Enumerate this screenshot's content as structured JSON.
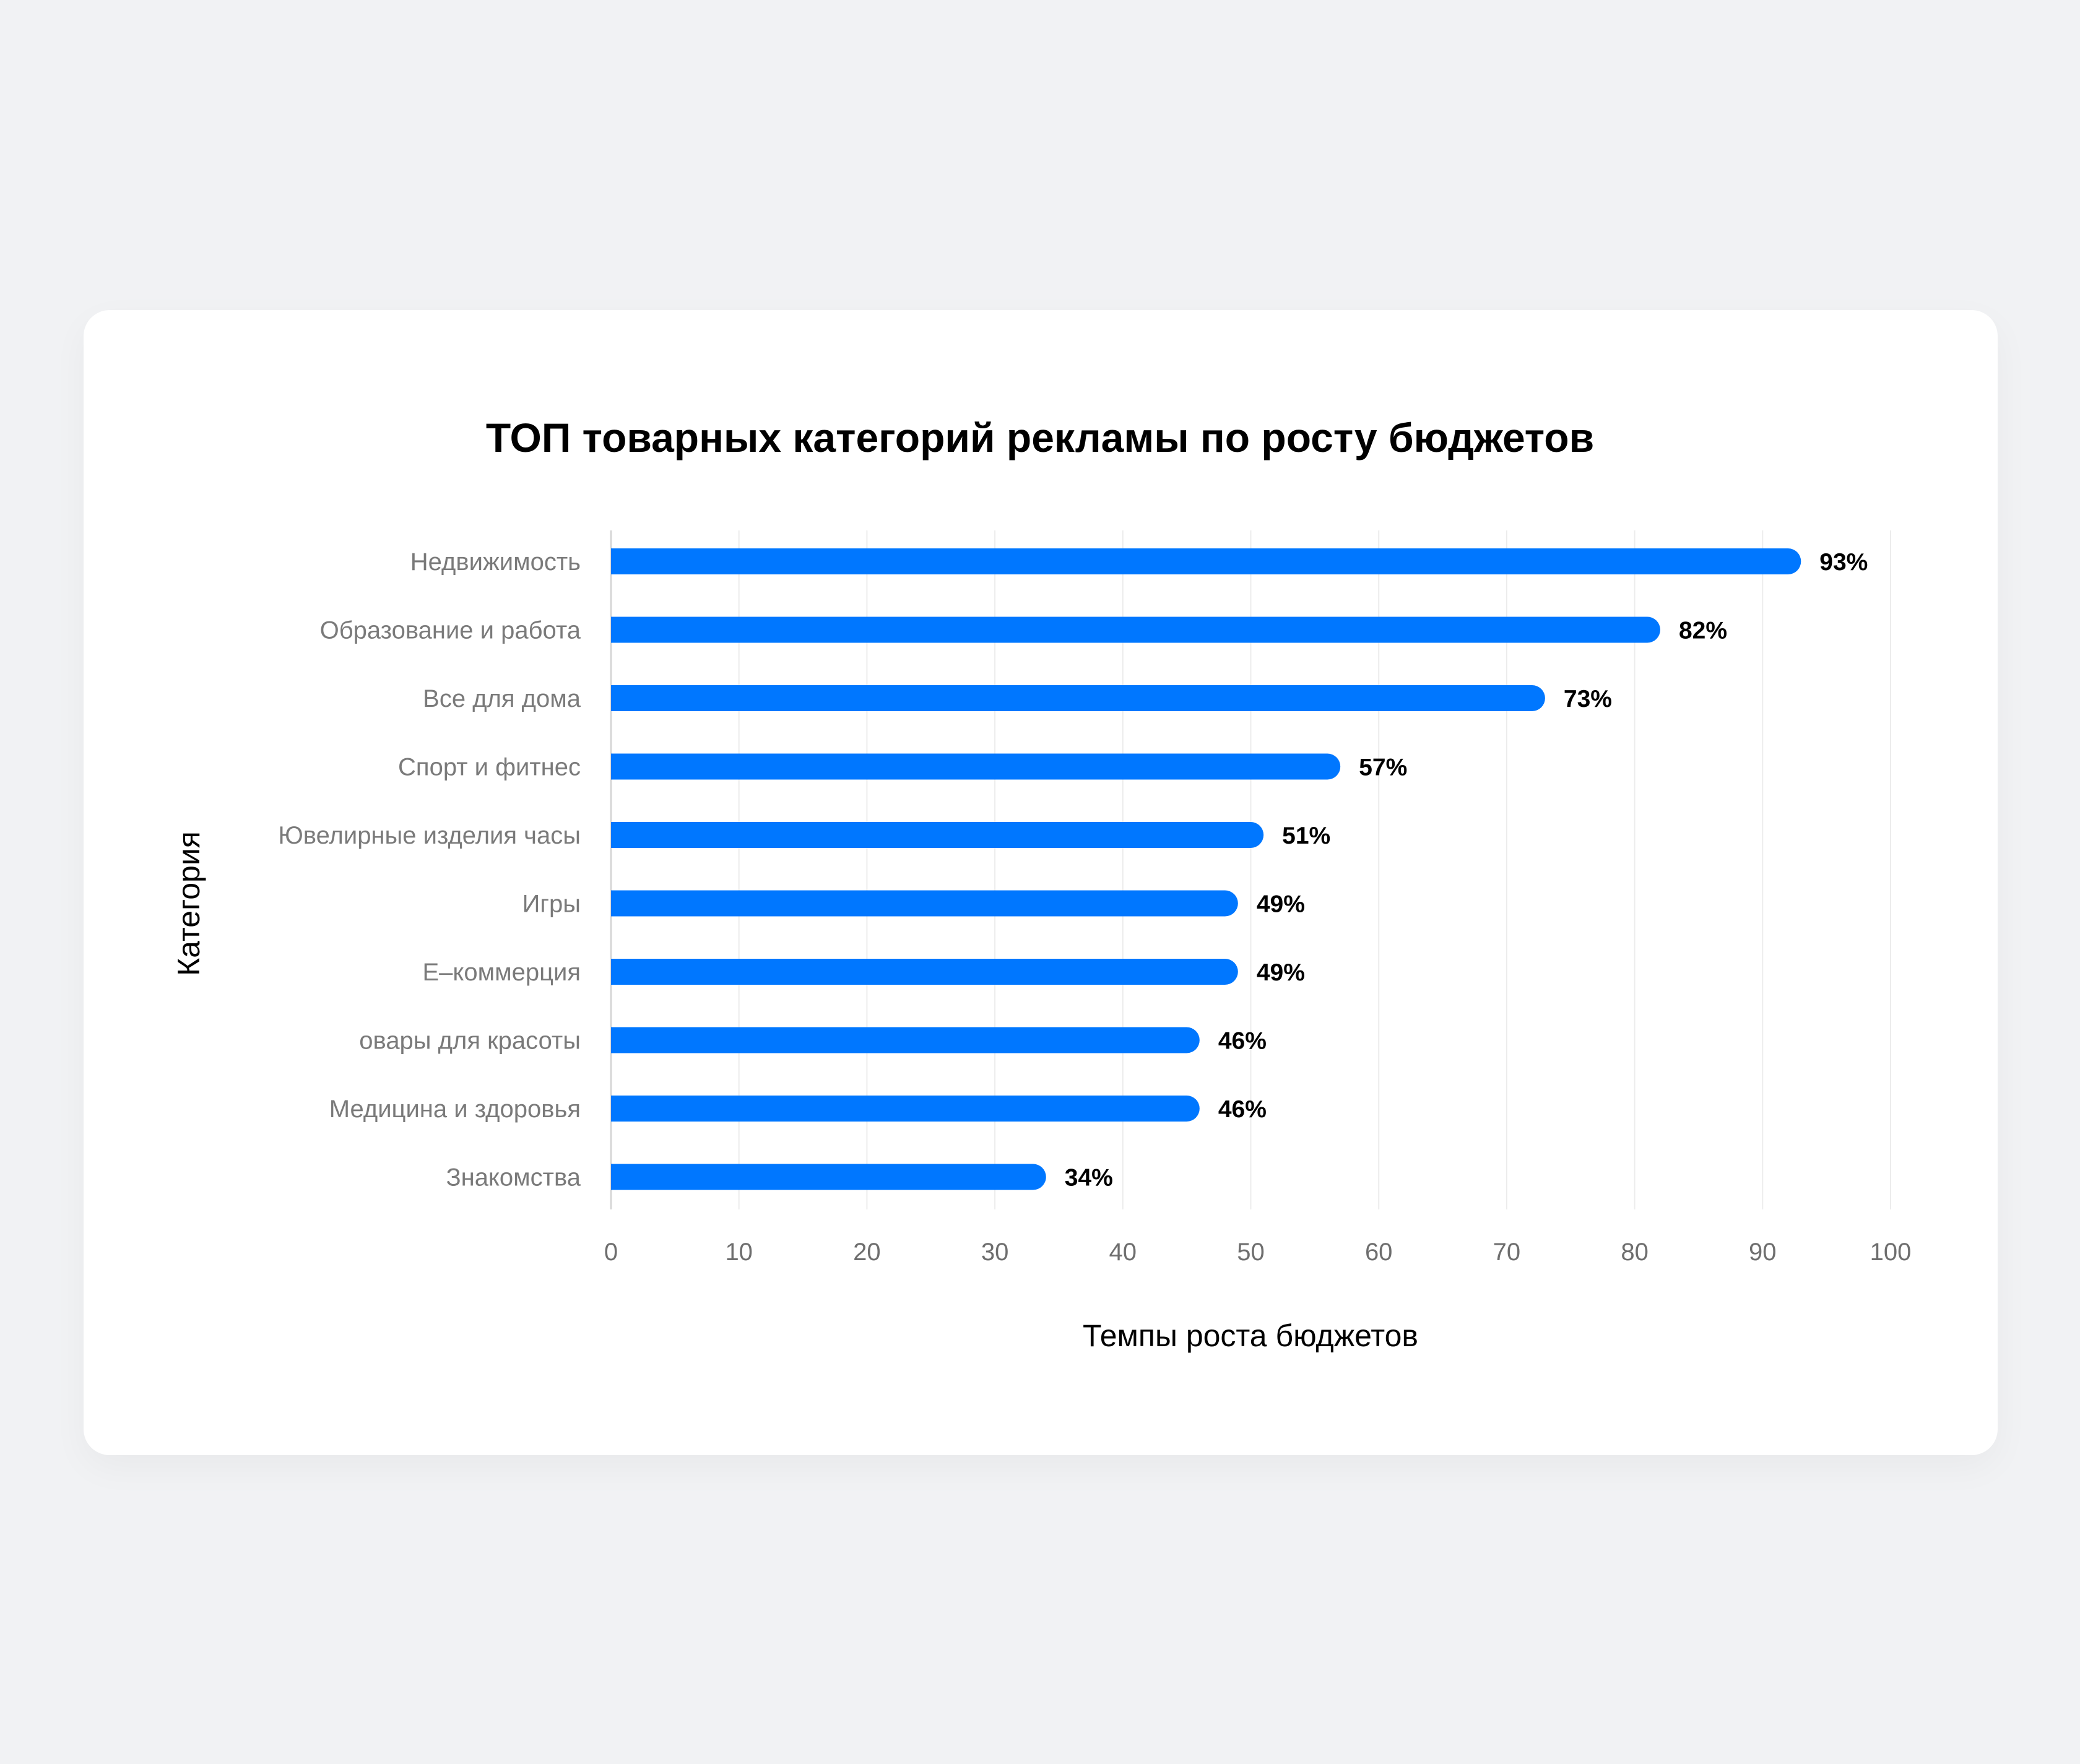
{
  "chart_data": {
    "type": "bar",
    "orientation": "horizontal",
    "title": "ТОП товарных категорий рекламы по росту бюджетов",
    "xlabel": "Темпы роста бюджетов",
    "ylabel": "Категория",
    "categories": [
      "Недвижимость",
      "Образование и работа",
      "Все для дома",
      "Спорт и фитнес",
      "Ювелирные изделия часы",
      "Игры",
      "E–коммерция",
      "овары для красоты",
      "Медицина и здоровья",
      "Знакомства"
    ],
    "values": [
      93,
      82,
      73,
      57,
      51,
      49,
      49,
      46,
      46,
      34
    ],
    "value_labels": [
      "93%",
      "82%",
      "73%",
      "57%",
      "51%",
      "49%",
      "49%",
      "46%",
      "46%",
      "34%"
    ],
    "xlim": [
      0,
      100
    ],
    "xticks": [
      "0",
      "10",
      "20",
      "30",
      "40",
      "50",
      "60",
      "70",
      "80",
      "90",
      "100"
    ],
    "grid": true,
    "bar_color": "#0077ff"
  }
}
